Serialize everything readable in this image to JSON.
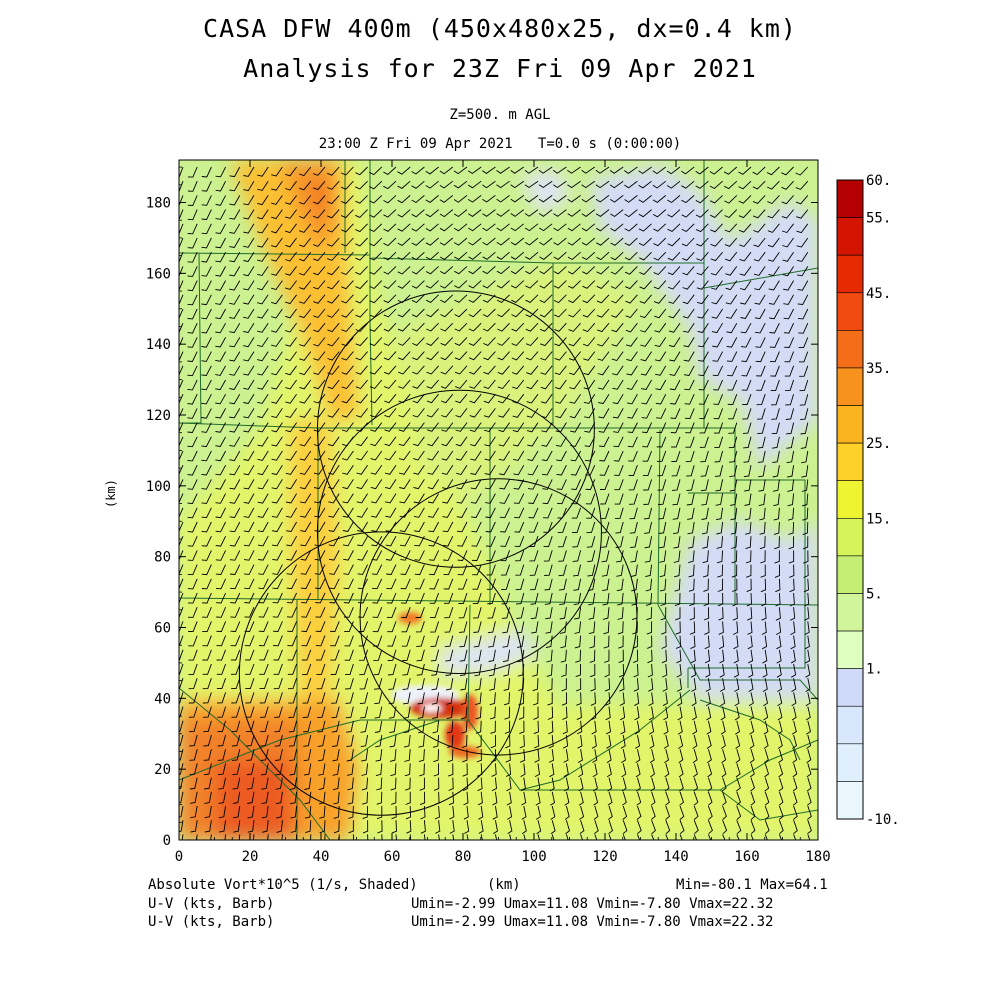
{
  "header": {
    "title_line1": "CASA DFW 400m (450x480x25, dx=0.4 km)",
    "title_line2": "Analysis for 23Z Fri 09 Apr 2021",
    "level": "Z=500. m AGL",
    "time": "23:00 Z Fri 09 Apr 2021   T=0.0 s (0:00:00)"
  },
  "axes": {
    "x_label": "(km)",
    "y_label": "(km)",
    "x_ticks": [
      "0",
      "20",
      "40",
      "60",
      "80",
      "100",
      "120",
      "140",
      "160",
      "180"
    ],
    "y_ticks": [
      "0",
      "20",
      "40",
      "60",
      "80",
      "100",
      "120",
      "140",
      "160",
      "180"
    ],
    "xlim": [
      0,
      180
    ],
    "ylim": [
      0,
      192
    ]
  },
  "colorbar": {
    "labels": [
      "60.",
      "55.",
      "45.",
      "35.",
      "25.",
      "15.",
      "5.",
      "1.",
      "-10."
    ],
    "colors": [
      "#b40000",
      "#d21400",
      "#e62a00",
      "#f04a10",
      "#f46e1a",
      "#f8921e",
      "#fab420",
      "#fdd02a",
      "#eef530",
      "#d6f45a",
      "#c4ef74",
      "#d0f59a",
      "#dfffc0",
      "#cfd9f8",
      "#d8e7fb",
      "#e0effc",
      "#eaf7fd"
    ]
  },
  "footer": {
    "field": "Absolute Vort*10^5 (1/s, Shaded)",
    "x_unit": "(km)",
    "minmax": "Min=-80.1 Max=64.1",
    "barb1_label": "U-V (kts, Barb)",
    "barb1_stats": "Umin=-2.99 Umax=11.08 Vmin=-7.80 Vmax=22.32",
    "barb2_label": "U-V (kts, Barb)",
    "barb2_stats": "Umin=-2.99 Umax=11.08 Vmin=-7.80 Vmax=22.32"
  },
  "radars": [
    {
      "center_km": [
        78,
        116
      ],
      "radius_km": 39
    },
    {
      "center_km": [
        79,
        87
      ],
      "radius_km": 40
    },
    {
      "center_km": [
        90,
        63
      ],
      "radius_km": 39
    },
    {
      "center_km": [
        57,
        47
      ],
      "radius_km": 40
    }
  ]
}
